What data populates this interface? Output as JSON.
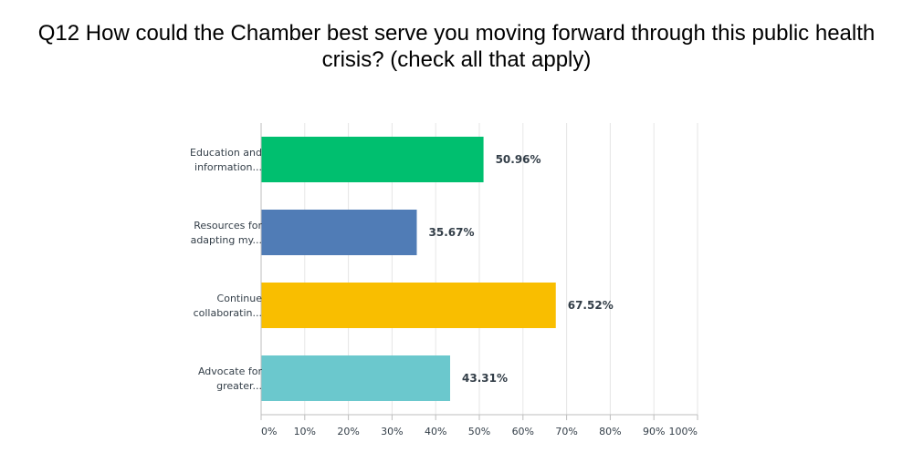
{
  "chart_data": {
    "type": "bar",
    "orientation": "horizontal",
    "title": "Q12 How could the Chamber best serve you moving forward through this public health crisis? (check all that apply)",
    "categories": [
      [
        "Education and",
        "information..."
      ],
      [
        "Resources for",
        "adapting my..."
      ],
      [
        "Continue",
        "collaboratin..."
      ],
      [
        "Advocate for",
        "greater..."
      ]
    ],
    "values": [
      50.96,
      35.67,
      67.52,
      43.31
    ],
    "value_labels": [
      "50.96%",
      "35.67%",
      "67.52%",
      "43.31%"
    ],
    "colors": [
      "#00bf6f",
      "#507cb6",
      "#f9be00",
      "#6bc8cd"
    ],
    "xlim": [
      0,
      100
    ],
    "x_ticks": [
      0,
      10,
      20,
      30,
      40,
      50,
      60,
      70,
      80,
      90,
      100
    ],
    "x_tick_labels": [
      "0%",
      "10%",
      "20%",
      "30%",
      "40%",
      "50%",
      "60%",
      "70%",
      "80%",
      "90%",
      "100%"
    ],
    "grid": true,
    "legend": "none",
    "xlabel": "",
    "ylabel": ""
  }
}
